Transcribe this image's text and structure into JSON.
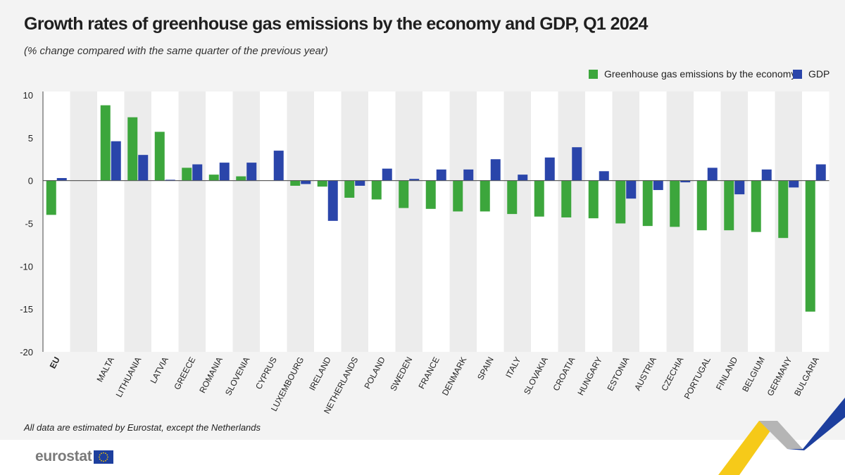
{
  "chart_data": {
    "type": "bar",
    "title": "Growth rates of greenhouse gas emissions by the economy and GDP, Q1 2024",
    "subtitle": "(% change compared with the same quarter of the previous year)",
    "categories": [
      "EU",
      "MALTA",
      "LITHUANIA",
      "LATVIA",
      "GREECE",
      "ROMANIA",
      "SLOVENIA",
      "CYPRUS",
      "LUXEMBOURG",
      "IRELAND",
      "NETHERLANDS",
      "POLAND",
      "SWEDEN",
      "FRANCE",
      "DENMARK",
      "SPAIN",
      "ITALY",
      "SLOVAKIA",
      "CROATIA",
      "HUNGARY",
      "ESTONIA",
      "AUSTRIA",
      "CZECHIA",
      "PORTUGAL",
      "FINLAND",
      "BELGIUM",
      "GERMANY",
      "BULGARIA"
    ],
    "series": [
      {
        "name": "Greenhouse gas emissions by the economy",
        "color": "#3ca63c",
        "values": [
          -4.0,
          8.8,
          7.4,
          5.7,
          1.5,
          0.7,
          0.5,
          0.0,
          -0.6,
          -0.7,
          -2.0,
          -2.2,
          -3.2,
          -3.3,
          -3.6,
          -3.6,
          -3.9,
          -4.2,
          -4.3,
          -4.4,
          -5.0,
          -5.3,
          -5.4,
          -5.8,
          -5.8,
          -6.0,
          -6.7,
          -15.3
        ]
      },
      {
        "name": "GDP",
        "color": "#2a45aa",
        "values": [
          0.3,
          4.6,
          3.0,
          0.1,
          1.9,
          2.1,
          2.1,
          3.5,
          -0.4,
          -4.7,
          -0.6,
          1.4,
          0.2,
          1.3,
          1.3,
          2.5,
          0.7,
          2.7,
          3.9,
          1.1,
          -2.1,
          -1.1,
          -0.2,
          1.5,
          -1.6,
          1.3,
          -0.8,
          1.9
        ]
      }
    ],
    "ylim": [
      -20,
      10
    ],
    "yticks": [
      10,
      5,
      0,
      -5,
      -10,
      -15,
      -20
    ],
    "bold_categories": [
      "EU"
    ],
    "legend_position": "top-right",
    "grid": false,
    "band_colors": {
      "light": "#ffffff",
      "dark": "#ececec"
    }
  },
  "footnote": "All data are estimated by Eurostat, except the Netherlands",
  "logo": {
    "text": "eurostat"
  },
  "colors": {
    "green": "#3ca63c",
    "blue": "#2a45aa",
    "yellow": "#f5c400",
    "grey": "#a8a8a8"
  }
}
